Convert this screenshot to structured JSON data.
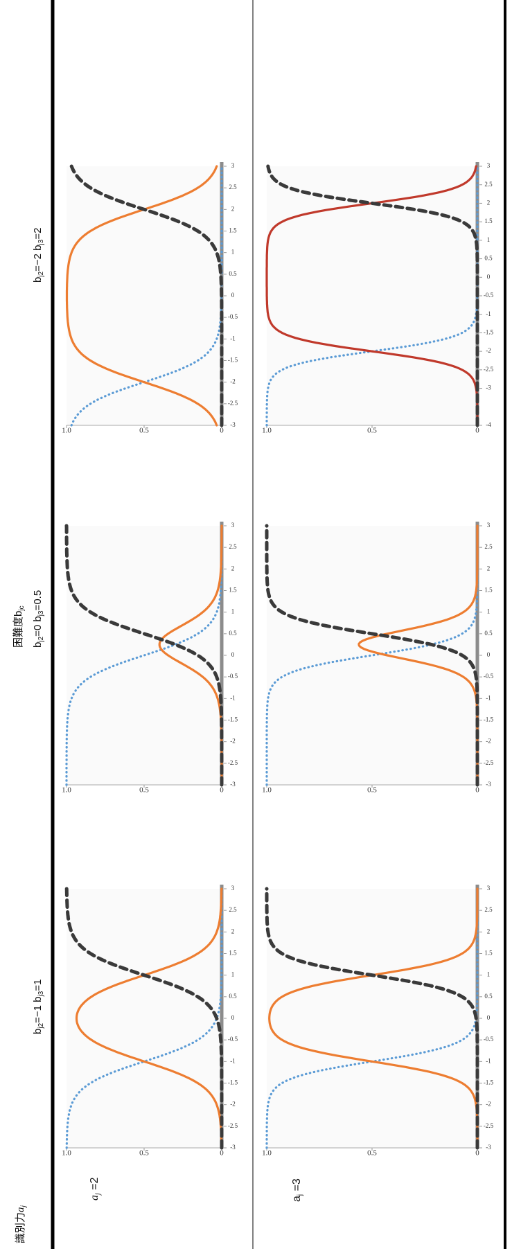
{
  "header": {
    "row_axis_label": "識別力",
    "row_axis_symbol": "a",
    "row_axis_symbol_sub": "j",
    "col_axis_label": "困難度b",
    "col_axis_label_sub": "jc"
  },
  "columns": [
    {
      "b": "b",
      "s2": "j2",
      "e2": "=−1",
      "b2": "b",
      "s3": "j3",
      "e3": "=1"
    },
    {
      "b": "b",
      "s2": "j2",
      "e2": "=0",
      "b2": "b",
      "s3": "j3",
      "e3": "=0.5"
    },
    {
      "b": "b",
      "s2": "j2",
      "e2": "=−2",
      "b2": "b",
      "s3": "j3",
      "e3": "=2"
    }
  ],
  "rows": [
    {
      "sym": "a",
      "sub": "j",
      "eq": "=2"
    },
    {
      "sym": "a",
      "sub": "j",
      "eq": "=3"
    }
  ],
  "colors": {
    "dotted": "#5b9bd5",
    "dashed": "#3a3a3a",
    "solid": "#ed7d31",
    "solid_alt": "#c0392b",
    "zero_line": "#8c8c8c"
  },
  "chart_data": [
    {
      "type": "line",
      "panel": "a_j=2, b_j2=-1, b_j3=1",
      "a": 2,
      "b_j2": -1,
      "b_j3": 1,
      "xlim": [
        -3,
        3
      ],
      "ylim": [
        0,
        1
      ],
      "x_ticks": [
        "-3",
        "-2.5",
        "-2",
        "-1.5",
        "-1",
        "-0.5",
        "0",
        "0.5",
        "1",
        "1.5",
        "2",
        "2.5",
        "3"
      ],
      "y_ticks": [
        "0",
        "0.5",
        "1.0"
      ],
      "series": [
        {
          "style": "dotted",
          "color": "#5b9bd5"
        },
        {
          "style": "solid",
          "color": "#ed7d31"
        },
        {
          "style": "dashed",
          "color": "#3a3a3a"
        }
      ]
    },
    {
      "type": "line",
      "panel": "a_j=2, b_j2=0, b_j3=0.5",
      "a": 2,
      "b_j2": 0,
      "b_j3": 0.5,
      "xlim": [
        -3,
        3
      ],
      "ylim": [
        0,
        1
      ],
      "x_ticks": [
        "-3",
        "-2.5",
        "-2",
        "-1.5",
        "-1",
        "-0.5",
        "0",
        "0.5",
        "1",
        "1.5",
        "2",
        "2.5",
        "3"
      ],
      "y_ticks": [
        "0",
        "0.5",
        "1.0"
      ],
      "series": [
        {
          "style": "dotted",
          "color": "#5b9bd5"
        },
        {
          "style": "solid",
          "color": "#ed7d31"
        },
        {
          "style": "dashed",
          "color": "#3a3a3a"
        }
      ]
    },
    {
      "type": "line",
      "panel": "a_j=2, b_j2=-2, b_j3=2",
      "a": 2,
      "b_j2": -2,
      "b_j3": 2,
      "xlim": [
        -3,
        3
      ],
      "ylim": [
        0,
        1
      ],
      "x_ticks": [
        "-3",
        "-2.5",
        "-2",
        "-1.5",
        "-1",
        "-0.5",
        "0",
        "0.5",
        "1",
        "1.5",
        "2",
        "2.5",
        "3"
      ],
      "y_ticks": [
        "0",
        "0.5",
        "1.0"
      ],
      "series": [
        {
          "style": "dotted",
          "color": "#5b9bd5"
        },
        {
          "style": "solid",
          "color": "#ed7d31"
        },
        {
          "style": "dashed",
          "color": "#3a3a3a"
        }
      ]
    },
    {
      "type": "line",
      "panel": "a_j=3, b_j2=-1, b_j3=1",
      "a": 3,
      "b_j2": -1,
      "b_j3": 1,
      "xlim": [
        -3,
        3
      ],
      "ylim": [
        0,
        1
      ],
      "x_ticks": [
        "-3",
        "-2.5",
        "-2",
        "-1.5",
        "-1",
        "-0.5",
        "0",
        "0.5",
        "1",
        "1.5",
        "2",
        "2.5",
        "3"
      ],
      "y_ticks": [
        "0",
        "0.5",
        "1.0"
      ],
      "series": [
        {
          "style": "dotted",
          "color": "#5b9bd5"
        },
        {
          "style": "solid",
          "color": "#ed7d31"
        },
        {
          "style": "dashed",
          "color": "#3a3a3a"
        }
      ]
    },
    {
      "type": "line",
      "panel": "a_j=3, b_j2=0, b_j3=0.5",
      "a": 3,
      "b_j2": 0,
      "b_j3": 0.5,
      "xlim": [
        -3,
        3
      ],
      "ylim": [
        0,
        1
      ],
      "x_ticks": [
        "-3",
        "-2.5",
        "-2",
        "-1.5",
        "-1",
        "-0.5",
        "0",
        "0.5",
        "1",
        "1.5",
        "2",
        "2.5",
        "3"
      ],
      "y_ticks": [
        "0",
        "0.5",
        "1.0"
      ],
      "series": [
        {
          "style": "dotted",
          "color": "#5b9bd5"
        },
        {
          "style": "solid",
          "color": "#ed7d31"
        },
        {
          "style": "dashed",
          "color": "#3a3a3a"
        }
      ]
    },
    {
      "type": "line",
      "panel": "a_j=3, b_j2=-2, b_j3=2",
      "a": 3,
      "b_j2": -2,
      "b_j3": 2,
      "xlim": [
        -4,
        3
      ],
      "ylim": [
        0,
        1
      ],
      "x_ticks": [
        "-4",
        "-3",
        "-2.5",
        "-2",
        "-1.5",
        "-1",
        "-0.5",
        "0",
        "0.5",
        "1",
        "1.5",
        "2",
        "2.5",
        "3"
      ],
      "y_ticks": [
        "0",
        "0.5",
        "1.0"
      ],
      "series": [
        {
          "style": "dotted",
          "color": "#5b9bd5"
        },
        {
          "style": "solid",
          "color": "#c0392b"
        },
        {
          "style": "dashed",
          "color": "#3a3a3a"
        }
      ]
    }
  ]
}
